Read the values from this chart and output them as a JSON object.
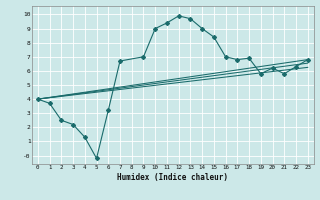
{
  "xlabel": "Humidex (Indice chaleur)",
  "bg_color": "#cce8e8",
  "line_color": "#1a6b6b",
  "grid_color": "#ffffff",
  "xlim": [
    -0.5,
    23.5
  ],
  "ylim": [
    -0.6,
    10.6
  ],
  "xticks": [
    0,
    1,
    2,
    3,
    4,
    5,
    6,
    7,
    8,
    9,
    10,
    11,
    12,
    13,
    14,
    15,
    16,
    17,
    18,
    19,
    20,
    21,
    22,
    23
  ],
  "yticks": [
    0,
    1,
    2,
    3,
    4,
    5,
    6,
    7,
    8,
    9,
    10
  ],
  "main_line": {
    "x": [
      0,
      1,
      2,
      3,
      4,
      5,
      6,
      7,
      9,
      10,
      11,
      12,
      13,
      14,
      15,
      16,
      17,
      18,
      19,
      20,
      21,
      22,
      23
    ],
    "y": [
      4.0,
      3.7,
      2.5,
      2.2,
      1.3,
      -0.2,
      3.2,
      6.7,
      7.0,
      9.0,
      9.4,
      9.9,
      9.7,
      9.0,
      8.4,
      7.0,
      6.8,
      6.9,
      5.8,
      6.2,
      5.8,
      6.3,
      6.8
    ]
  },
  "straight_lines": [
    {
      "x": [
        0,
        23
      ],
      "y": [
        4.0,
        6.8
      ]
    },
    {
      "x": [
        0,
        23
      ],
      "y": [
        4.0,
        6.55
      ]
    },
    {
      "x": [
        0,
        23
      ],
      "y": [
        4.0,
        6.25
      ]
    }
  ]
}
